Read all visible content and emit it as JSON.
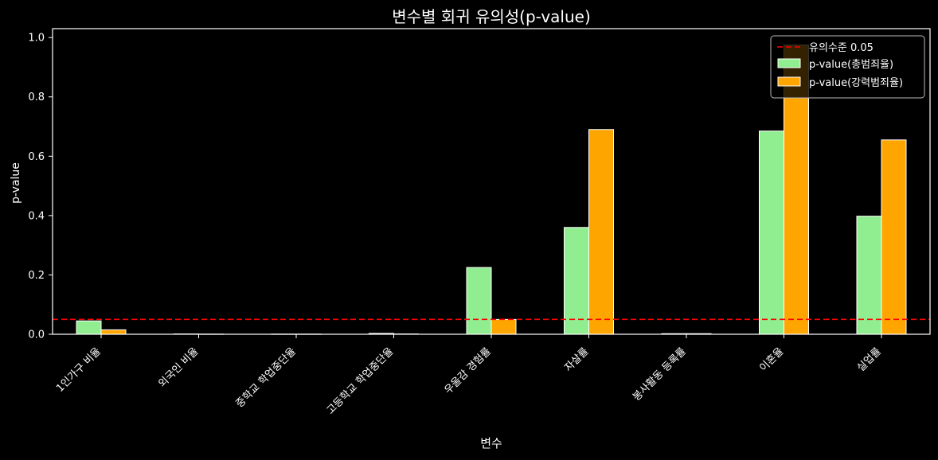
{
  "chart_data": {
    "type": "bar",
    "title": "변수별 회귀 유의성(p-value)",
    "xlabel": "변수",
    "ylabel": "p-value",
    "ylim": [
      0,
      1.03
    ],
    "yticks": [
      "0.0",
      "0.2",
      "0.4",
      "0.6",
      "0.8",
      "1.0"
    ],
    "grid": false,
    "legend_position": "top-right",
    "categories": [
      "1인가구 비율",
      "외국인 비율",
      "중학교 학업중단율",
      "고등학교 학업중단율",
      "우울감 경험률",
      "자살률",
      "봉사활동 등록률",
      "이혼율",
      "실업률"
    ],
    "series": [
      {
        "name": "p-value(총범죄율)",
        "color": "#90ee90",
        "values": [
          0.045,
          0.001,
          0.0005,
          0.003,
          0.225,
          0.36,
          0.002,
          0.685,
          0.398
        ]
      },
      {
        "name": "p-value(강력범죄율)",
        "color": "#ffa500",
        "values": [
          0.015,
          0.0005,
          0.0005,
          0.001,
          0.05,
          0.69,
          0.002,
          0.975,
          0.655
        ]
      }
    ],
    "reference_line": {
      "label": "유의수준 0.05",
      "value": 0.05,
      "color": "#ff0000",
      "style": "dashed"
    }
  }
}
